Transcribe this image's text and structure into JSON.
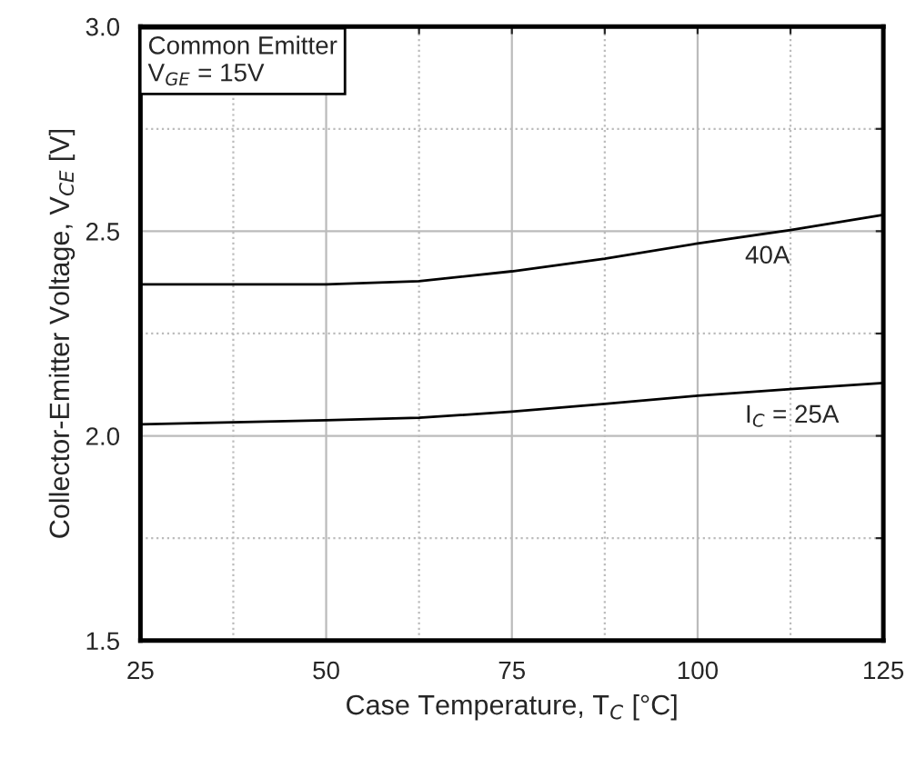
{
  "chart_data": {
    "type": "line",
    "xlabel": "Case Temperature, T$_{C}$ [°C]",
    "ylabel": "Collector-Emitter Voltage, V$_{CE}$ [V]",
    "x": [
      25,
      37.5,
      50,
      62.5,
      75,
      87.5,
      100,
      112.5,
      125
    ],
    "series": [
      {
        "color": "#000000",
        "values": [
          2.37,
          2.37,
          2.37,
          2.378,
          2.402,
          2.433,
          2.47,
          2.503,
          2.54
        ]
      },
      {
        "color": "#000000",
        "values": [
          2.028,
          2.033,
          2.038,
          2.044,
          2.059,
          2.078,
          2.098,
          2.114,
          2.129
        ]
      }
    ],
    "xlim": [
      25,
      125
    ],
    "ylim": [
      1.5,
      3.0
    ],
    "xticks": [
      25,
      {
        "value": 37.5,
        "label": null
      },
      50,
      {
        "value": 62.5,
        "label": null
      },
      75,
      {
        "value": 87.5,
        "label": null
      },
      100,
      {
        "value": 112.5,
        "label": null
      },
      125
    ],
    "yticks": [
      {
        "value": 1.5,
        "label": "1.5"
      },
      {
        "value": 1.75,
        "label": null
      },
      {
        "value": 2.0,
        "label": "2.0"
      },
      {
        "value": 2.25,
        "label": null
      },
      {
        "value": 2.5,
        "label": "2.5"
      },
      {
        "value": 2.75,
        "label": null
      },
      {
        "value": 3.0,
        "label": "3.0"
      }
    ],
    "grid": true,
    "marker": "none",
    "line_style": "solid",
    "annotations": [
      "Common Emitter\nV$_{GE}$ = 15V",
      {
        "text": "40A",
        "x": 112.5,
        "y": 2.503
      },
      {
        "text": "I$_{C}$ = 25A",
        "x": 112.5,
        "y": 2.114
      }
    ]
  }
}
